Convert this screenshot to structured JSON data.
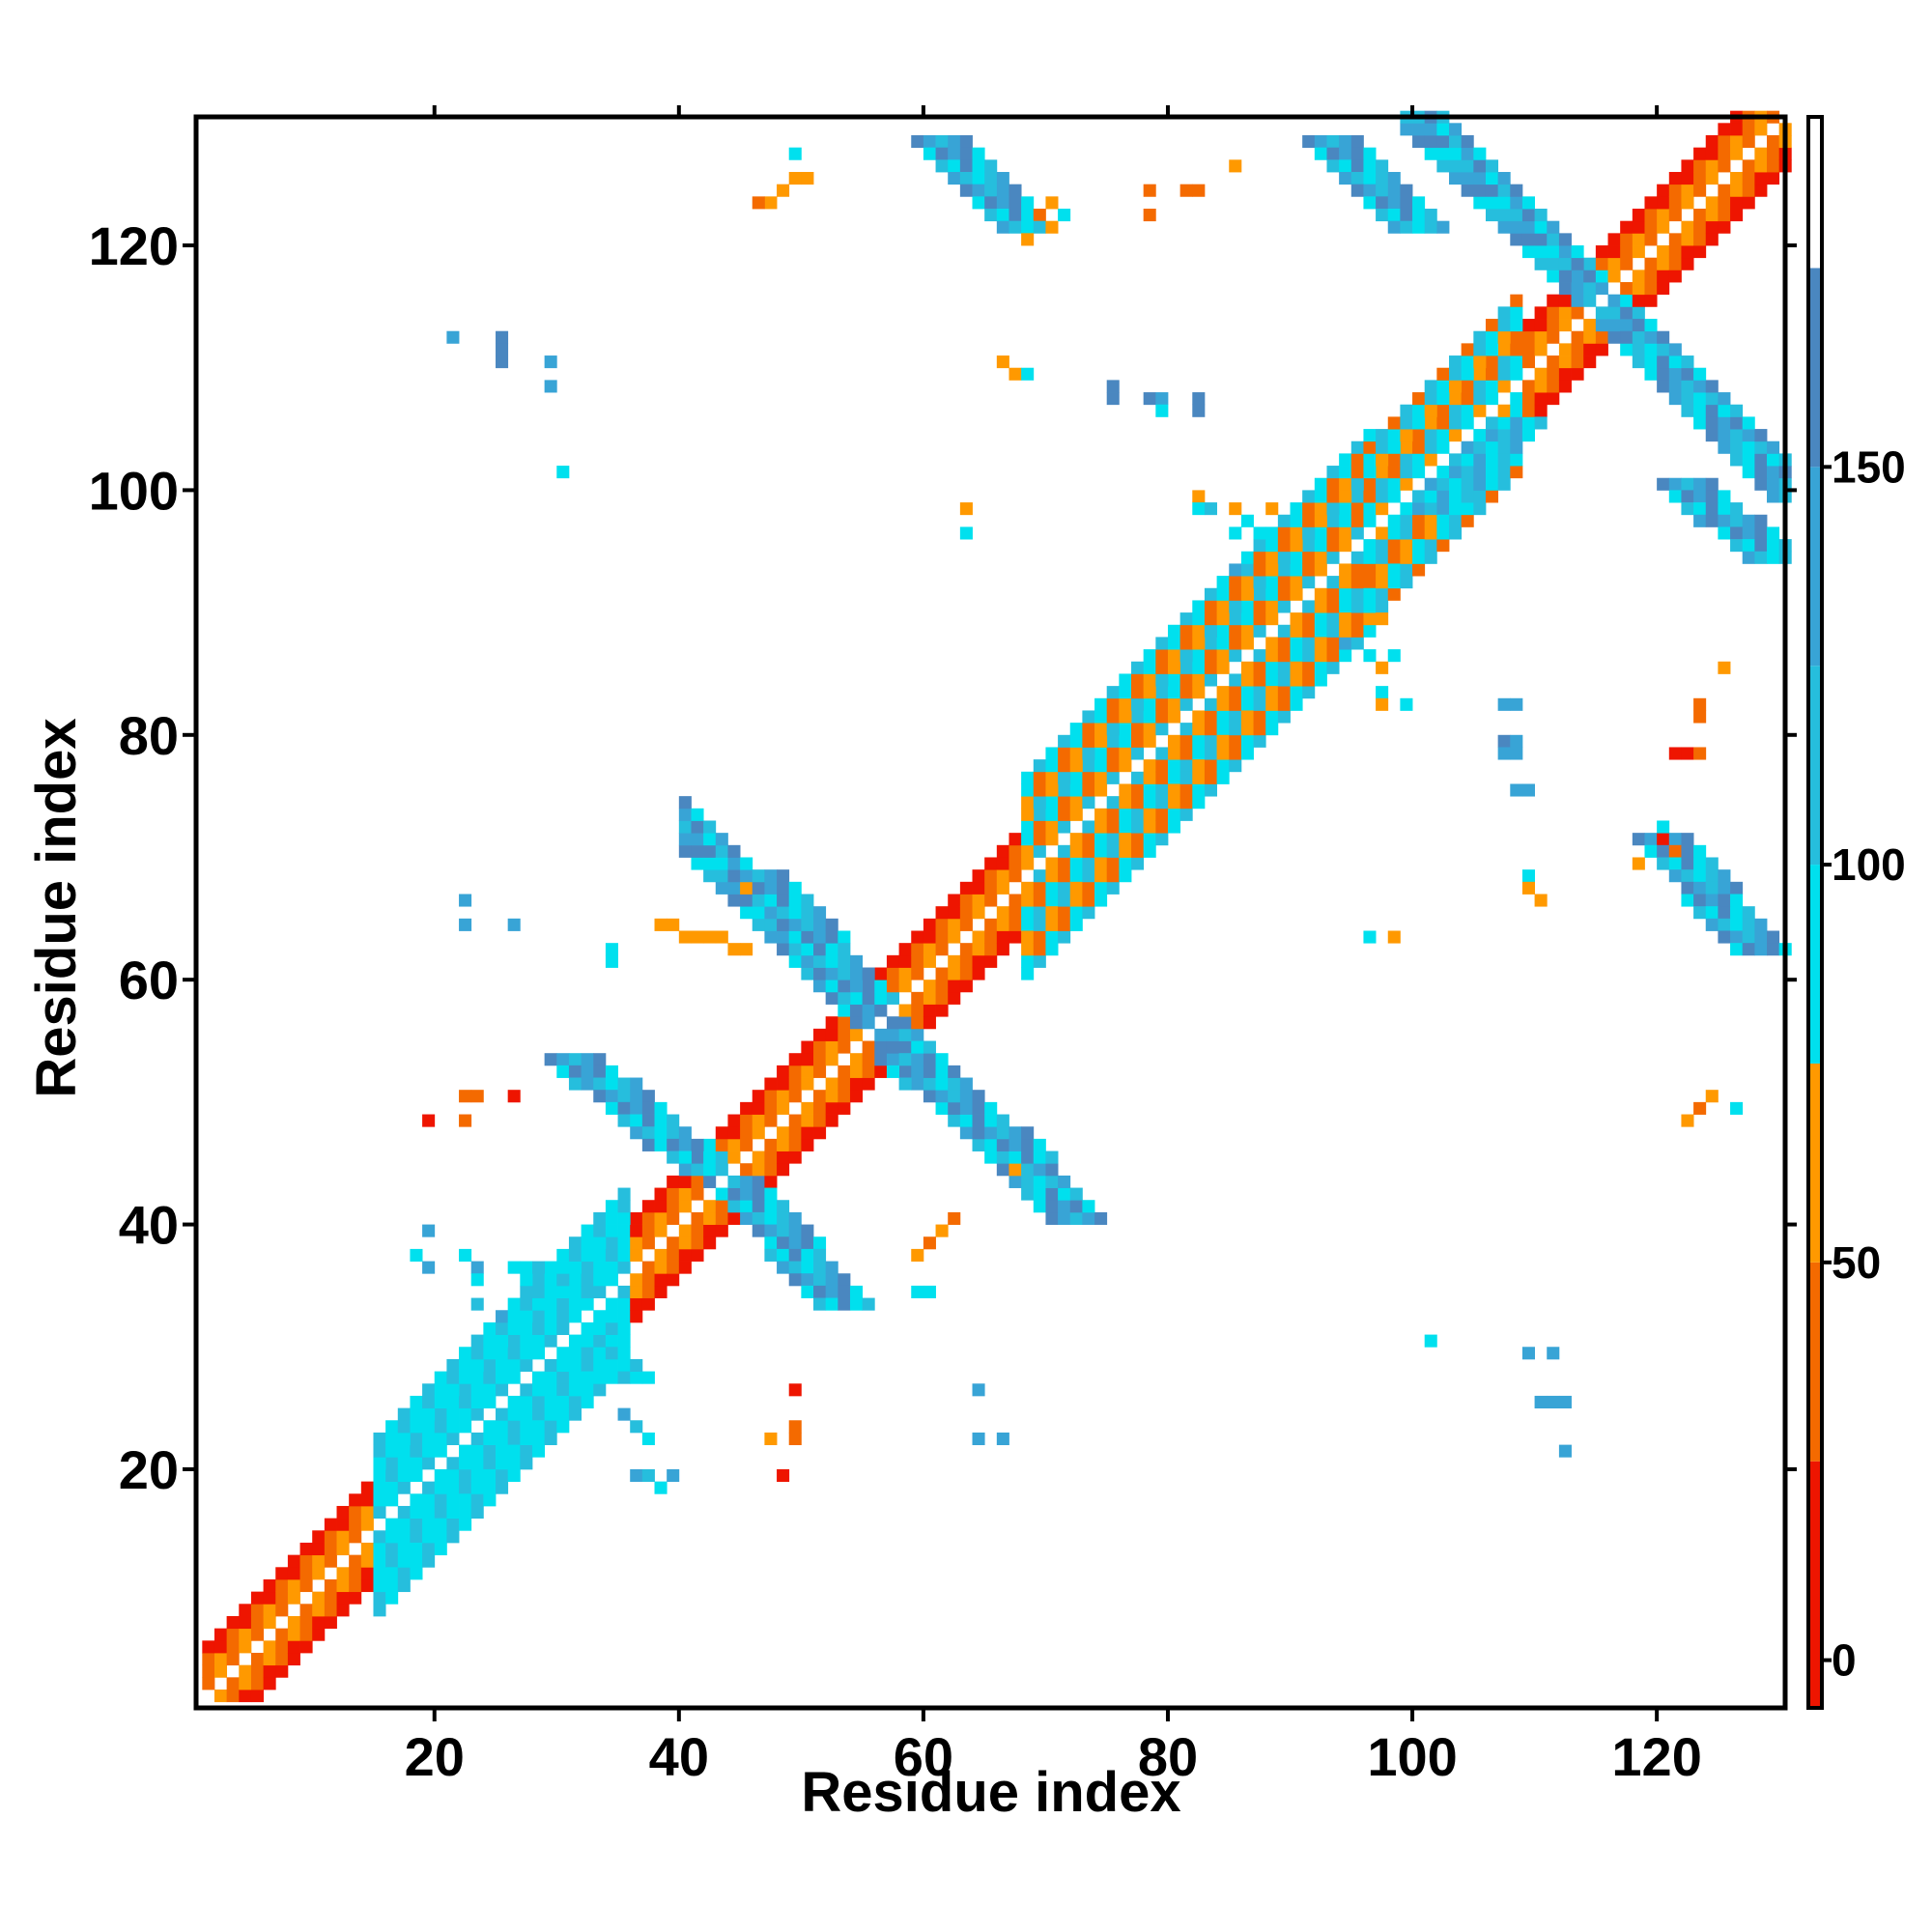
{
  "chart_data": {
    "type": "heatmap",
    "title": "",
    "xlabel": "Residue index",
    "ylabel": "Residue index",
    "xlim": [
      1,
      130
    ],
    "ylim": [
      1,
      130
    ],
    "x_ticks": [
      20,
      40,
      60,
      80,
      100,
      120
    ],
    "y_ticks": [
      20,
      40,
      60,
      80,
      100,
      120
    ],
    "grid": false,
    "colorbar": {
      "placement": "right",
      "ticks": [
        0,
        50,
        100,
        150
      ],
      "range": [
        -6,
        194
      ],
      "bins": [
        {
          "from": -6,
          "to": 25,
          "color": "#ee1500"
        },
        {
          "from": 25,
          "to": 50,
          "color": "#f46a00"
        },
        {
          "from": 50,
          "to": 75,
          "color": "#ff9900"
        },
        {
          "from": 75,
          "to": 100,
          "color": "#00e0ee"
        },
        {
          "from": 100,
          "to": 125,
          "color": "#26bedd"
        },
        {
          "from": 125,
          "to": 150,
          "color": "#38a4d6"
        },
        {
          "from": 150,
          "to": 175,
          "color": "#4a87c0"
        },
        {
          "from": 175,
          "to": 194,
          "color": "#ffffff"
        }
      ]
    },
    "value_bins": {
      "R": "#ee1500",
      "O": "#f46a00",
      "Y": "#ff9900",
      "C": "#00e0ee",
      "L": "#26bedd",
      "M": "#38a4d6",
      "B": "#4a87c0"
    },
    "regions": [
      {
        "kind": "diag",
        "from": 1,
        "to": 130,
        "halfwidth": 4,
        "palette": "ROYOR"
      },
      {
        "kind": "diag",
        "from": 15,
        "to": 35,
        "halfwidth": 7,
        "palette": "CLC"
      },
      {
        "kind": "diag",
        "from": 68,
        "to": 96,
        "halfwidth": 8,
        "palette": "CLYO"
      },
      {
        "kind": "diag",
        "from": 96,
        "to": 108,
        "halfwidth": 7,
        "palette": "OYCL"
      },
      {
        "kind": "anti",
        "from": 40,
        "to": 57,
        "center": 112,
        "halfwidth": 2,
        "palette": "LMBC"
      },
      {
        "kind": "anti",
        "from": 99,
        "to": 117,
        "center": 230,
        "halfwidth": 2,
        "palette": "LMBC"
      },
      {
        "kind": "seg",
        "x0": 31,
        "y0": 53,
        "x1": 42,
        "y1": 44,
        "halfwidth": 2,
        "palette": "LMBC"
      },
      {
        "kind": "seg",
        "x0": 46,
        "y0": 68,
        "x1": 55,
        "y1": 58,
        "halfwidth": 2,
        "palette": "LMBC"
      },
      {
        "kind": "seg",
        "x0": 58,
        "y0": 53,
        "x1": 68,
        "y1": 45,
        "halfwidth": 2,
        "palette": "LMBC"
      },
      {
        "kind": "seg",
        "x0": 44,
        "y0": 43,
        "x1": 53,
        "y1": 33,
        "halfwidth": 2,
        "palette": "LMBC"
      },
      {
        "kind": "seg",
        "x0": 61,
        "y0": 128,
        "x1": 68,
        "y1": 121,
        "halfwidth": 2,
        "palette": "LMBC"
      },
      {
        "kind": "seg",
        "x0": 93,
        "y0": 128,
        "x1": 100,
        "y1": 121,
        "halfwidth": 2,
        "palette": "LMBC"
      },
      {
        "kind": "seg",
        "x0": 122,
        "y0": 100,
        "x1": 129,
        "y1": 94,
        "halfwidth": 2,
        "palette": "LMBC"
      },
      {
        "kind": "seg",
        "x0": 120,
        "y0": 71,
        "x1": 128,
        "y1": 62,
        "halfwidth": 2,
        "palette": "LMBC"
      },
      {
        "kind": "seg",
        "x0": 35,
        "y0": 27,
        "x1": 28,
        "y1": 36,
        "halfwidth": 2,
        "palette": "LCC"
      },
      {
        "kind": "seg",
        "x0": 101,
        "y0": 98,
        "x1": 108,
        "y1": 105,
        "halfwidth": 2,
        "palette": "LMC"
      },
      {
        "kind": "seg",
        "x0": 47,
        "y0": 123,
        "x1": 49,
        "y1": 125,
        "halfwidth": 0,
        "palette": "Y"
      },
      {
        "kind": "seg",
        "x0": 45,
        "y0": 62,
        "x1": 38,
        "y1": 64,
        "halfwidth": 0,
        "palette": "Y"
      },
      {
        "kind": "seg",
        "x0": 62,
        "y0": 40,
        "x1": 59,
        "y1": 37,
        "halfwidth": 0,
        "palette": "OY"
      },
      {
        "kind": "seg",
        "x0": 122,
        "y0": 48,
        "x1": 124,
        "y1": 50,
        "halfwidth": 0,
        "palette": "YO"
      }
    ],
    "points": [
      {
        "x": 19,
        "y": 39,
        "v": "M"
      },
      {
        "x": 18,
        "y": 37,
        "v": "C"
      },
      {
        "x": 19,
        "y": 36,
        "v": "M"
      },
      {
        "x": 22,
        "y": 37,
        "v": "C"
      },
      {
        "x": 23,
        "y": 36,
        "v": "M"
      },
      {
        "x": 23,
        "y": 35,
        "v": "C"
      },
      {
        "x": 23,
        "y": 33,
        "v": "L"
      },
      {
        "x": 25,
        "y": 32,
        "v": "M"
      },
      {
        "x": 35,
        "y": 24,
        "v": "M"
      },
      {
        "x": 36,
        "y": 23,
        "v": "L"
      },
      {
        "x": 37,
        "y": 22,
        "v": "C"
      },
      {
        "x": 36,
        "y": 19,
        "v": "M"
      },
      {
        "x": 37,
        "y": 19,
        "v": "L"
      },
      {
        "x": 38,
        "y": 18,
        "v": "C"
      },
      {
        "x": 39,
        "y": 19,
        "v": "M"
      },
      {
        "x": 19,
        "y": 48,
        "v": "R"
      },
      {
        "x": 22,
        "y": 48,
        "v": "O"
      },
      {
        "x": 22,
        "y": 50,
        "v": "O"
      },
      {
        "x": 23,
        "y": 50,
        "v": "O"
      },
      {
        "x": 26,
        "y": 50,
        "v": "R"
      },
      {
        "x": 22,
        "y": 66,
        "v": "M"
      },
      {
        "x": 22,
        "y": 64,
        "v": "M"
      },
      {
        "x": 26,
        "y": 64,
        "v": "M"
      },
      {
        "x": 34,
        "y": 61,
        "v": "C"
      },
      {
        "x": 34,
        "y": 62,
        "v": "C"
      },
      {
        "x": 45,
        "y": 67,
        "v": "Y"
      },
      {
        "x": 21,
        "y": 112,
        "v": "M"
      },
      {
        "x": 25,
        "y": 112,
        "v": "B"
      },
      {
        "x": 25,
        "y": 111,
        "v": "B"
      },
      {
        "x": 25,
        "y": 110,
        "v": "B"
      },
      {
        "x": 29,
        "y": 110,
        "v": "M"
      },
      {
        "x": 29,
        "y": 108,
        "v": "M"
      },
      {
        "x": 30,
        "y": 101,
        "v": "C"
      },
      {
        "x": 49,
        "y": 127,
        "v": "C"
      },
      {
        "x": 50,
        "y": 125,
        "v": "Y"
      },
      {
        "x": 46,
        "y": 123,
        "v": "O"
      },
      {
        "x": 49,
        "y": 26,
        "v": "R"
      },
      {
        "x": 49,
        "y": 23,
        "v": "O"
      },
      {
        "x": 49,
        "y": 22,
        "v": "O"
      },
      {
        "x": 47,
        "y": 22,
        "v": "Y"
      },
      {
        "x": 48,
        "y": 19,
        "v": "R"
      },
      {
        "x": 59,
        "y": 34,
        "v": "C"
      },
      {
        "x": 60,
        "y": 34,
        "v": "C"
      },
      {
        "x": 64,
        "y": 26,
        "v": "M"
      },
      {
        "x": 64,
        "y": 22,
        "v": "M"
      },
      {
        "x": 66,
        "y": 22,
        "v": "M"
      },
      {
        "x": 67,
        "y": 44,
        "v": "Y"
      },
      {
        "x": 63,
        "y": 98,
        "v": "Y"
      },
      {
        "x": 63,
        "y": 96,
        "v": "C"
      },
      {
        "x": 66,
        "y": 110,
        "v": "Y"
      },
      {
        "x": 67,
        "y": 109,
        "v": "Y"
      },
      {
        "x": 68,
        "y": 109,
        "v": "C"
      },
      {
        "x": 69,
        "y": 122,
        "v": "O"
      },
      {
        "x": 70,
        "y": 121,
        "v": "Y"
      },
      {
        "x": 71,
        "y": 122,
        "v": "C"
      },
      {
        "x": 70,
        "y": 123,
        "v": "Y"
      },
      {
        "x": 68,
        "y": 120,
        "v": "Y"
      },
      {
        "x": 78,
        "y": 124,
        "v": "O"
      },
      {
        "x": 78,
        "y": 122,
        "v": "O"
      },
      {
        "x": 81,
        "y": 124,
        "v": "O"
      },
      {
        "x": 82,
        "y": 124,
        "v": "O"
      },
      {
        "x": 85,
        "y": 126,
        "v": "Y"
      },
      {
        "x": 75,
        "y": 108,
        "v": "B"
      },
      {
        "x": 75,
        "y": 107,
        "v": "B"
      },
      {
        "x": 78,
        "y": 107,
        "v": "B"
      },
      {
        "x": 79,
        "y": 107,
        "v": "M"
      },
      {
        "x": 79,
        "y": 106,
        "v": "C"
      },
      {
        "x": 82,
        "y": 107,
        "v": "B"
      },
      {
        "x": 82,
        "y": 106,
        "v": "B"
      },
      {
        "x": 82,
        "y": 99,
        "v": "Y"
      },
      {
        "x": 82,
        "y": 98,
        "v": "C"
      },
      {
        "x": 83,
        "y": 98,
        "v": "L"
      },
      {
        "x": 85,
        "y": 98,
        "v": "Y"
      },
      {
        "x": 86,
        "y": 97,
        "v": "C"
      },
      {
        "x": 85,
        "y": 96,
        "v": "C"
      },
      {
        "x": 88,
        "y": 98,
        "v": "Y"
      },
      {
        "x": 87,
        "y": 96,
        "v": "C"
      },
      {
        "x": 85,
        "y": 93,
        "v": "M"
      },
      {
        "x": 86,
        "y": 93,
        "v": "L"
      },
      {
        "x": 96,
        "y": 89,
        "v": "Y"
      },
      {
        "x": 97,
        "y": 89,
        "v": "Y"
      },
      {
        "x": 94,
        "y": 87,
        "v": "M"
      },
      {
        "x": 96,
        "y": 86,
        "v": "C"
      },
      {
        "x": 98,
        "y": 86,
        "v": "C"
      },
      {
        "x": 97,
        "y": 85,
        "v": "Y"
      },
      {
        "x": 97,
        "y": 83,
        "v": "C"
      },
      {
        "x": 97,
        "y": 82,
        "v": "Y"
      },
      {
        "x": 99,
        "y": 82,
        "v": "C"
      },
      {
        "x": 96,
        "y": 63,
        "v": "C"
      },
      {
        "x": 98,
        "y": 63,
        "v": "Y"
      },
      {
        "x": 101,
        "y": 30,
        "v": "C"
      },
      {
        "x": 107,
        "y": 82,
        "v": "M"
      },
      {
        "x": 108,
        "y": 82,
        "v": "M"
      },
      {
        "x": 107,
        "y": 79,
        "v": "B"
      },
      {
        "x": 108,
        "y": 79,
        "v": "M"
      },
      {
        "x": 107,
        "y": 78,
        "v": "M"
      },
      {
        "x": 108,
        "y": 78,
        "v": "M"
      },
      {
        "x": 108,
        "y": 75,
        "v": "M"
      },
      {
        "x": 109,
        "y": 75,
        "v": "M"
      },
      {
        "x": 109,
        "y": 68,
        "v": "C"
      },
      {
        "x": 109,
        "y": 67,
        "v": "Y"
      },
      {
        "x": 110,
        "y": 66,
        "v": "Y"
      },
      {
        "x": 109,
        "y": 29,
        "v": "M"
      },
      {
        "x": 111,
        "y": 29,
        "v": "M"
      },
      {
        "x": 110,
        "y": 25,
        "v": "M"
      },
      {
        "x": 111,
        "y": 25,
        "v": "M"
      },
      {
        "x": 112,
        "y": 25,
        "v": "M"
      },
      {
        "x": 112,
        "y": 21,
        "v": "M"
      },
      {
        "x": 121,
        "y": 78,
        "v": "R"
      },
      {
        "x": 122,
        "y": 78,
        "v": "R"
      },
      {
        "x": 123,
        "y": 78,
        "v": "O"
      },
      {
        "x": 123,
        "y": 82,
        "v": "O"
      },
      {
        "x": 123,
        "y": 81,
        "v": "O"
      },
      {
        "x": 125,
        "y": 85,
        "v": "Y"
      },
      {
        "x": 118,
        "y": 69,
        "v": "Y"
      },
      {
        "x": 120,
        "y": 72,
        "v": "C"
      },
      {
        "x": 120,
        "y": 71,
        "v": "R"
      },
      {
        "x": 121,
        "y": 70,
        "v": "O"
      },
      {
        "x": 126,
        "y": 49,
        "v": "C"
      }
    ]
  }
}
